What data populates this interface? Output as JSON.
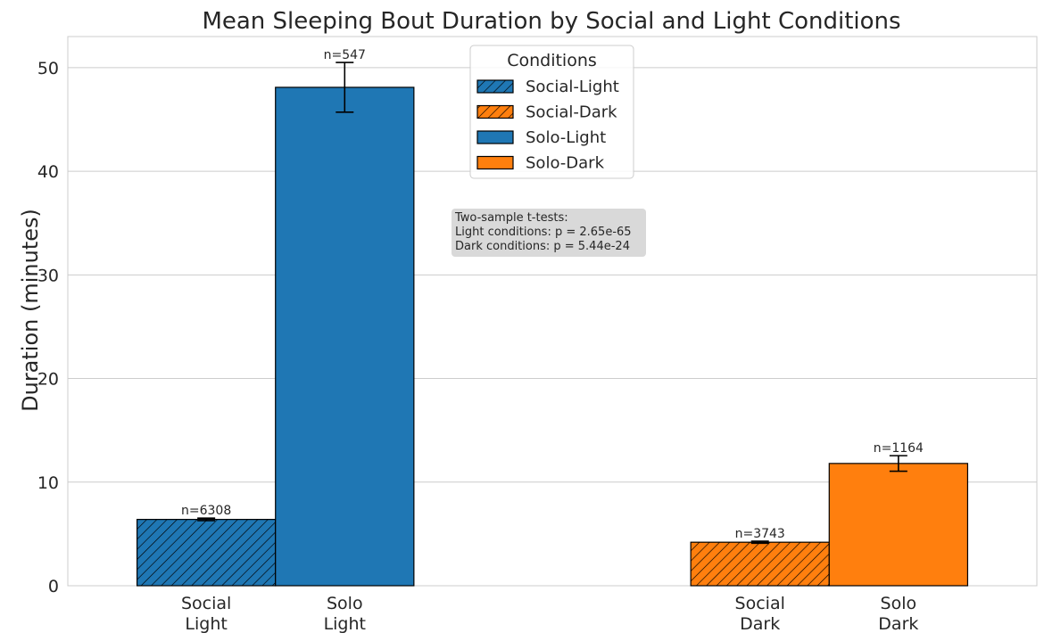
{
  "chart_data": {
    "type": "bar",
    "title": "Mean Sleeping Bout Duration by Social and Light Conditions",
    "xlabel": "",
    "ylabel": "Duration (minutes)",
    "ylim": [
      0,
      53
    ],
    "yticks": [
      0,
      10,
      20,
      30,
      40,
      50
    ],
    "grid": true,
    "bars": [
      {
        "condition": "Social-Light",
        "label_lines": [
          "Social",
          "Light"
        ],
        "value": 6.4,
        "err": 0.12,
        "n_label": "n=6308",
        "color": "#1f77b4",
        "hatched": true,
        "x": 0.75
      },
      {
        "condition": "Solo-Light",
        "label_lines": [
          "Solo",
          "Light"
        ],
        "value": 48.1,
        "err": 2.4,
        "n_label": "n=547",
        "color": "#1f77b4",
        "hatched": false,
        "x": 1.25
      },
      {
        "condition": "Social-Dark",
        "label_lines": [
          "Social",
          "Dark"
        ],
        "value": 4.2,
        "err": 0.1,
        "n_label": "n=3743",
        "color": "#ff7f0e",
        "hatched": true,
        "x": 2.75
      },
      {
        "condition": "Solo-Dark",
        "label_lines": [
          "Solo",
          "Dark"
        ],
        "value": 11.8,
        "err": 0.75,
        "n_label": "n=1164",
        "color": "#ff7f0e",
        "hatched": false,
        "x": 3.25
      }
    ],
    "legend": {
      "title": "Conditions",
      "placement": "top-center",
      "entries": [
        {
          "label": "Social-Light",
          "color": "#1f77b4",
          "hatched": true
        },
        {
          "label": "Social-Dark",
          "color": "#ff7f0e",
          "hatched": true
        },
        {
          "label": "Solo-Light",
          "color": "#1f77b4",
          "hatched": false
        },
        {
          "label": "Solo-Dark",
          "color": "#ff7f0e",
          "hatched": false
        }
      ]
    },
    "annotation": {
      "lines": [
        "Two-sample t-tests:",
        "Light conditions: p = 2.65e-65",
        "Dark conditions: p = 5.44e-24"
      ]
    }
  }
}
